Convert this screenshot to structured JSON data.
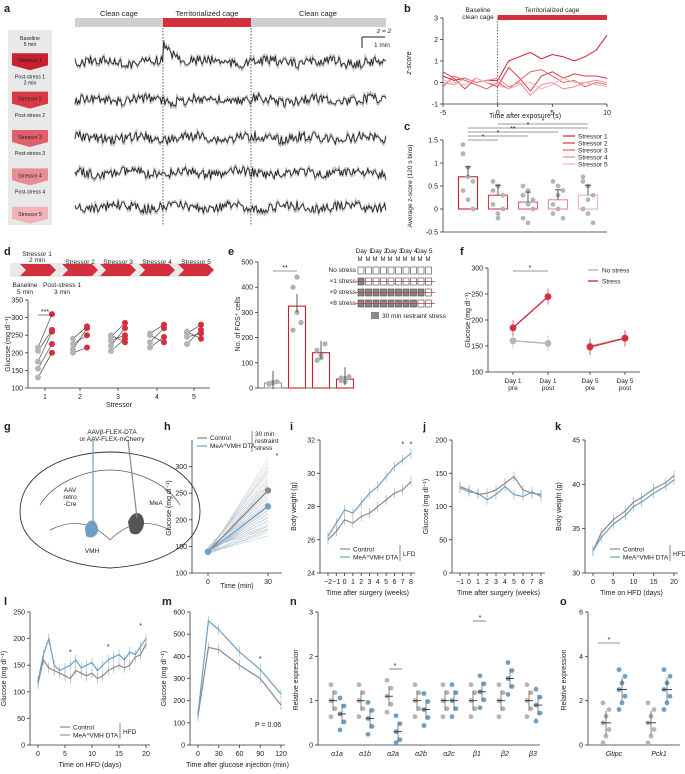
{
  "colors": {
    "red": "#d32f3c",
    "blue": "#6e9fc4",
    "grey": "#b0b0b0",
    "dark": "#222222",
    "pink1": "#e8848c",
    "pink2": "#f2b9be"
  },
  "panels": {
    "a": {
      "label": "a",
      "bar_labels": [
        "Clean cage",
        "Territorialized cage",
        "Clean cage"
      ],
      "scale_y": "z = 2",
      "scale_x": "1 min",
      "steps": [
        {
          "a": "Baseline",
          "b": "5 min"
        },
        {
          "a": "Stressor 1",
          "b": "2 min"
        },
        {
          "a": "Post-stress 1",
          "b": "3 min"
        },
        {
          "a": "Stressor 2",
          "b": ""
        },
        {
          "a": "Post-stress 2",
          "b": ""
        },
        {
          "a": "Stressor 3",
          "b": ""
        },
        {
          "a": "Post-stress 3",
          "b": ""
        },
        {
          "a": "Stressor 4",
          "b": ""
        },
        {
          "a": "Post-stress 4",
          "b": ""
        },
        {
          "a": "Stressor 5",
          "b": ""
        }
      ]
    },
    "b": {
      "label": "b",
      "baseline": "Baseline",
      "baseline2": "clean cage",
      "territory": "Territorialized cage",
      "ylabel": "z-score",
      "xlabel": "Time after exposure (s)"
    },
    "c": {
      "label": "c",
      "ylabel": "Average z-score (120 s bins)",
      "legend": [
        "Stressor 1",
        "Stressor 2",
        "Stressor 3",
        "Stressor 4",
        "Stressor 5"
      ],
      "sig": [
        "*",
        "*",
        "**",
        "*",
        "*"
      ]
    },
    "d": {
      "label": "d",
      "steps": [
        "Stressor 1",
        "2 min",
        "Stressor 2",
        "Stressor 3",
        "Stressor 4",
        "Stressor 5",
        "Baseline",
        "5 min",
        "Post-stress 1",
        "3 min"
      ],
      "ylabel": "Glucose (mg dl⁻¹)",
      "xlabel": "Stressor",
      "sig": "***"
    },
    "e": {
      "label": "e",
      "ylabel": "No. of FOS⁺ cells",
      "sig": "**",
      "days": [
        "Day 1",
        "Day 2",
        "Day 3",
        "Day 4",
        "Day 5"
      ],
      "conds": [
        "No stress",
        "×1 stress",
        "×9 stress",
        "×8 stress"
      ],
      "legend": "30 min restraint stress"
    },
    "f": {
      "label": "f",
      "ylabel": "Glucose (mg dl⁻¹)",
      "legend": [
        "No stress",
        "Stress"
      ],
      "sig": "*"
    },
    "g": {
      "label": "g",
      "virus1": "AAVβ-FLEX-DTA",
      "virus2": "or AAV-FLEX-mCherry",
      "aav": "AAV",
      "retro": "retro",
      "cre": "-Cre",
      "mea": "MeA",
      "vmh": "VMH"
    },
    "h": {
      "label": "h",
      "ylabel": "Glucose (mg dl⁻¹)",
      "xlabel": "Time (min)",
      "legend": [
        "Control",
        "MeA^VMH DTA"
      ],
      "stress": "30 min restraint stress",
      "sig": "*"
    },
    "i": {
      "label": "i",
      "ylabel": "Body weight (g)",
      "xlabel": "Time after surgery (weeks)",
      "legend": [
        "Control",
        "MeA^VMH DTA"
      ],
      "diet": "LFD",
      "sig": "*"
    },
    "j": {
      "label": "j",
      "ylabel": "Glucose (mg dl⁻¹)",
      "xlabel": "Time after surgery (weeks)"
    },
    "k": {
      "label": "k",
      "ylabel": "Body weight (g)",
      "xlabel": "Time on HFD (days)",
      "legend": [
        "Control",
        "MeA^VMH DTA"
      ],
      "diet": "HFD"
    },
    "l": {
      "label": "l",
      "ylabel": "Glucose (mg dl⁻¹)",
      "xlabel": "Time on HFD (days)",
      "legend": [
        "Control",
        "MeA^VMH DTA"
      ],
      "diet": "HFD",
      "sig": "*"
    },
    "m": {
      "label": "m",
      "ylabel": "Glucose (mg dl⁻¹)",
      "xlabel": "Time after glucose injection (min)",
      "pval": "P = 0.06",
      "sig": "*"
    },
    "n": {
      "label": "n",
      "ylabel": "Relative expression",
      "sig": "*"
    },
    "o": {
      "label": "o",
      "ylabel": "Relative expression",
      "sig": "*"
    }
  },
  "chart_data": [
    {
      "type": "line",
      "panel": "b",
      "x": [
        -5,
        -4,
        -3,
        -2,
        -1,
        0,
        1,
        2,
        3,
        4,
        5,
        6,
        7,
        8,
        9,
        10
      ],
      "xlim": [
        -5,
        10
      ],
      "ylim": [
        -1,
        3
      ],
      "series": [
        {
          "name": "Stressor 1",
          "values": [
            0.3,
            0.1,
            0.2,
            0.0,
            0.1,
            0.1,
            1.0,
            1.2,
            1.4,
            1.1,
            1.3,
            1.2,
            1.0,
            1.2,
            1.5,
            2.2
          ]
        },
        {
          "name": "Stressor 2",
          "values": [
            0.5,
            0.2,
            -0.3,
            0.2,
            0.0,
            -0.2,
            0.7,
            0.2,
            -0.4,
            0.3,
            0.5,
            0.2,
            0.4,
            0.3,
            0.3,
            0.2
          ]
        },
        {
          "name": "Stressor 3",
          "values": [
            -0.2,
            0.3,
            0.1,
            -0.1,
            -0.3,
            0.0,
            -0.3,
            0.1,
            0.5,
            0.6,
            0.3,
            0.0,
            0.1,
            -0.2,
            0.0,
            -0.1
          ]
        },
        {
          "name": "Stressor 4",
          "values": [
            0.0,
            -0.1,
            0.2,
            0.0,
            0.1,
            0.2,
            -0.2,
            0.0,
            -0.6,
            -0.1,
            0.0,
            -0.3,
            -0.2,
            0.0,
            0.1,
            0.0
          ]
        },
        {
          "name": "Stressor 5",
          "values": [
            0.1,
            0.0,
            -0.1,
            0.2,
            0.0,
            -0.1,
            -0.3,
            -0.1,
            0.0,
            -0.3,
            -0.1,
            0.2,
            0.0,
            0.0,
            -0.1,
            -0.2
          ]
        }
      ]
    },
    {
      "type": "bar",
      "panel": "c",
      "categories": [
        "Stressor 1",
        "Stressor 2",
        "Stressor 3",
        "Stressor 4",
        "Stressor 5"
      ],
      "values": [
        0.7,
        0.3,
        0.15,
        0.2,
        0.3
      ],
      "ylim": [
        -0.5,
        1.5
      ],
      "points": [
        [
          1.2,
          0.9,
          0.6,
          0.4,
          0.2,
          0.0,
          1.4,
          0.7
        ],
        [
          0.6,
          0.5,
          0.3,
          0.1,
          -0.1,
          0.0,
          0.4,
          -0.2
        ],
        [
          0.3,
          0.4,
          0.0,
          -0.2,
          -0.3,
          0.2,
          0.5,
          0.1
        ],
        [
          0.6,
          0.5,
          0.4,
          0.1,
          0.0,
          -0.2,
          -0.1,
          0.3
        ],
        [
          0.7,
          0.5,
          0.3,
          0.0,
          -0.1,
          -0.3,
          0.6,
          0.2
        ]
      ]
    },
    {
      "type": "scatter",
      "panel": "d",
      "x": [
        1,
        2,
        3,
        4,
        5
      ],
      "ylim": [
        100,
        350
      ],
      "pairs": [
        [
          [
            130,
            200
          ],
          [
            155,
            225
          ],
          [
            175,
            260
          ],
          [
            205,
            265
          ],
          [
            215,
            310
          ]
        ],
        [
          [
            200,
            215
          ],
          [
            210,
            270
          ],
          [
            225,
            250
          ],
          [
            240,
            275
          ]
        ],
        [
          [
            205,
            240
          ],
          [
            220,
            270
          ],
          [
            235,
            250
          ],
          [
            245,
            285
          ],
          [
            250,
            230
          ]
        ],
        [
          [
            215,
            245
          ],
          [
            230,
            270
          ],
          [
            250,
            230
          ],
          [
            255,
            280
          ]
        ],
        [
          [
            225,
            265
          ],
          [
            245,
            255
          ],
          [
            255,
            280
          ],
          [
            260,
            240
          ]
        ]
      ]
    },
    {
      "type": "bar",
      "panel": "e",
      "categories": [
        "No stress",
        "×1 stress",
        "×9 stress",
        "×8 stress"
      ],
      "values": [
        20,
        325,
        140,
        35
      ],
      "ylim": [
        0,
        500
      ],
      "points": [
        [
          15,
          22,
          25,
          18,
          20
        ],
        [
          400,
          300,
          260,
          230,
          440
        ],
        [
          150,
          130,
          175,
          110,
          120
        ],
        [
          40,
          25,
          45,
          30,
          38
        ]
      ]
    },
    {
      "type": "line",
      "panel": "f",
      "categories": [
        "Day 1 pre",
        "Day 1 post",
        "Day 5 pre",
        "Day 5 post"
      ],
      "ylim": [
        100,
        300
      ],
      "series": [
        {
          "name": "No stress",
          "values": [
            160,
            155,
            150,
            165
          ]
        },
        {
          "name": "Stress",
          "values": [
            185,
            245,
            148,
            165
          ]
        }
      ]
    },
    {
      "type": "line",
      "panel": "h",
      "x": [
        0,
        30
      ],
      "ylim": [
        100,
        350
      ],
      "series": [
        {
          "name": "Control",
          "values": [
            140,
            255
          ]
        },
        {
          "name": "MeA^VMH DTA",
          "values": [
            140,
            225
          ]
        }
      ]
    },
    {
      "type": "line",
      "panel": "i",
      "x": [
        -2,
        -1,
        0,
        1,
        2,
        3,
        4,
        5,
        6,
        7,
        8
      ],
      "ylim": [
        24,
        32
      ],
      "series": [
        {
          "name": "Control",
          "values": [
            26.0,
            26.5,
            27.2,
            27.0,
            27.4,
            27.6,
            28.0,
            28.4,
            28.8,
            29.0,
            29.5
          ]
        },
        {
          "name": "MeA^VMH DTA",
          "values": [
            26.2,
            27.0,
            27.8,
            27.6,
            28.2,
            28.8,
            29.2,
            29.8,
            30.4,
            30.8,
            31.2
          ]
        }
      ]
    },
    {
      "type": "line",
      "panel": "j",
      "x": [
        -1,
        0,
        1,
        2,
        3,
        4,
        5,
        6,
        7,
        8
      ],
      "ylim": [
        0,
        200
      ],
      "series": [
        {
          "name": "Control",
          "values": [
            130,
            125,
            118,
            120,
            125,
            135,
            145,
            125,
            120,
            118
          ]
        },
        {
          "name": "MeA^VMH DTA",
          "values": [
            128,
            122,
            120,
            110,
            118,
            130,
            118,
            115,
            122,
            115
          ]
        }
      ]
    },
    {
      "type": "line",
      "panel": "k",
      "x": [
        0,
        2,
        5,
        8,
        10,
        12,
        15,
        18,
        20
      ],
      "ylim": [
        30,
        45
      ],
      "series": [
        {
          "name": "Control",
          "values": [
            32.5,
            34.5,
            36.0,
            37.0,
            38.0,
            38.5,
            39.5,
            40.2,
            41.0
          ]
        },
        {
          "name": "MeA^VMH DTA",
          "values": [
            32.5,
            34.0,
            35.5,
            36.5,
            37.5,
            38.0,
            39.0,
            39.8,
            40.5
          ]
        }
      ]
    },
    {
      "type": "line",
      "panel": "l",
      "x": [
        0,
        1,
        2,
        3,
        4,
        5,
        6,
        7,
        8,
        9,
        10,
        11,
        12,
        13,
        14,
        15,
        16,
        17,
        18,
        19,
        20
      ],
      "ylim": [
        0,
        250
      ],
      "series": [
        {
          "name": "Control",
          "values": [
            115,
            160,
            145,
            140,
            135,
            130,
            125,
            140,
            135,
            130,
            135,
            125,
            130,
            140,
            145,
            150,
            145,
            150,
            165,
            170,
            190
          ]
        },
        {
          "name": "MeA^VMH DTA",
          "values": [
            120,
            170,
            200,
            150,
            140,
            145,
            150,
            160,
            145,
            150,
            155,
            140,
            150,
            160,
            165,
            170,
            160,
            175,
            170,
            185,
            200
          ]
        }
      ]
    },
    {
      "type": "line",
      "panel": "m",
      "x": [
        0,
        15,
        30,
        60,
        90,
        120
      ],
      "ylim": [
        0,
        600
      ],
      "series": [
        {
          "name": "Control",
          "values": [
            130,
            440,
            430,
            360,
            300,
            180
          ]
        },
        {
          "name": "MeA^VMH DTA",
          "values": [
            140,
            560,
            520,
            420,
            340,
            230
          ]
        }
      ]
    },
    {
      "type": "bar",
      "panel": "n",
      "categories": [
        "α1a",
        "α1b",
        "α2a",
        "α2b",
        "α2c",
        "β1",
        "β2",
        "β3"
      ],
      "ylim": [
        0,
        3
      ],
      "series": [
        {
          "name": "Control",
          "values": [
            1.0,
            1.0,
            1.1,
            1.0,
            1.0,
            1.0,
            1.0,
            1.0
          ]
        },
        {
          "name": "MeA^VMH DTA",
          "values": [
            0.7,
            0.6,
            0.3,
            0.8,
            1.0,
            1.2,
            1.5,
            0.9
          ]
        }
      ]
    },
    {
      "type": "bar",
      "panel": "o",
      "categories": [
        "Gtipc",
        "Pck1"
      ],
      "ylim": [
        0,
        6
      ],
      "series": [
        {
          "name": "Control",
          "values": [
            1.0,
            1.0
          ]
        },
        {
          "name": "MeA^VMH DTA",
          "values": [
            2.5,
            2.5
          ]
        }
      ]
    }
  ]
}
